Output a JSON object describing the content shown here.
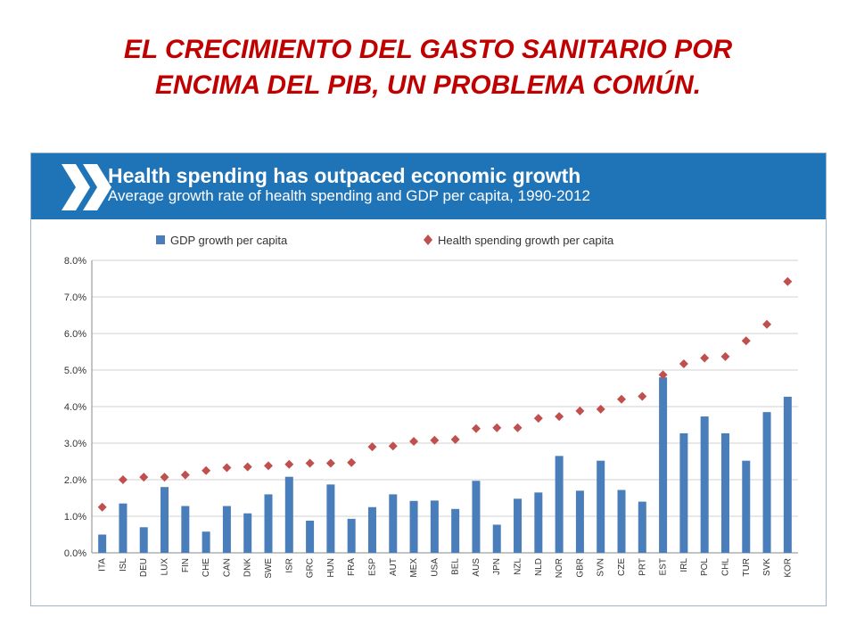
{
  "slide": {
    "title_line1": "EL CRECIMIENTO DEL GASTO SANITARIO POR",
    "title_line2": "ENCIMA DEL PIB, UN PROBLEMA COMÚN."
  },
  "colors": {
    "title": "#c00000",
    "banner": "#1f73b7",
    "bar": "#4a7ebb",
    "marker": "#c0504d"
  },
  "chart_data": {
    "type": "bar",
    "title": "Health spending has outpaced economic growth",
    "subtitle": "Average growth rate of health spending and GDP per capita, 1990-2012",
    "categories": [
      "ITA",
      "ISL",
      "DEU",
      "LUX",
      "FIN",
      "CHE",
      "CAN",
      "DNK",
      "SWE",
      "ISR",
      "GRC",
      "HUN",
      "FRA",
      "ESP",
      "AUT",
      "MEX",
      "USA",
      "BEL",
      "AUS",
      "JPN",
      "NZL",
      "NLD",
      "NOR",
      "GBR",
      "SVN",
      "CZE",
      "PRT",
      "EST",
      "IRL",
      "POL",
      "CHL",
      "TUR",
      "SVK",
      "KOR"
    ],
    "series": [
      {
        "name": "GDP growth per capita",
        "type": "bar",
        "values": [
          0.5,
          1.35,
          0.7,
          1.8,
          1.28,
          0.58,
          1.28,
          1.08,
          1.6,
          2.08,
          0.88,
          1.87,
          0.93,
          1.25,
          1.6,
          1.42,
          1.43,
          1.2,
          1.97,
          0.77,
          1.48,
          1.65,
          2.65,
          1.7,
          2.52,
          1.72,
          1.4,
          4.8,
          3.27,
          3.73,
          3.27,
          2.52,
          3.85,
          4.27
        ]
      },
      {
        "name": "Health spending growth per capita",
        "type": "scatter",
        "marker": "diamond",
        "values": [
          1.25,
          2.0,
          2.07,
          2.07,
          2.13,
          2.25,
          2.33,
          2.35,
          2.38,
          2.42,
          2.45,
          2.45,
          2.47,
          2.9,
          2.92,
          3.05,
          3.08,
          3.1,
          3.4,
          3.42,
          3.42,
          3.68,
          3.73,
          3.88,
          3.93,
          4.2,
          4.28,
          4.87,
          5.17,
          5.33,
          5.37,
          5.8,
          6.25,
          7.42
        ]
      }
    ],
    "y_ticks": [
      "0.0%",
      "1.0%",
      "2.0%",
      "3.0%",
      "4.0%",
      "5.0%",
      "6.0%",
      "7.0%",
      "8.0%"
    ],
    "ylim": [
      0,
      8
    ],
    "y_unit": "%",
    "grid": true,
    "legend_position": "top"
  }
}
